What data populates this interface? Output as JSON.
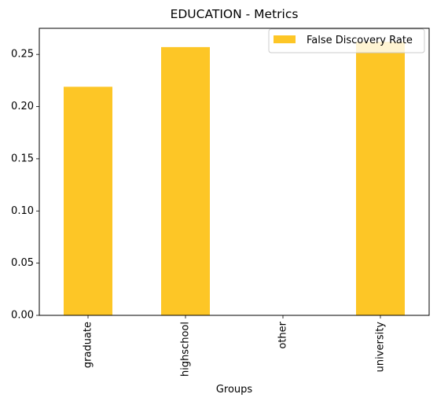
{
  "chart_data": {
    "type": "bar",
    "title": "EDUCATION - Metrics",
    "xlabel": "Groups",
    "ylabel": "",
    "categories": [
      "graduate",
      "highschool",
      "other",
      "university"
    ],
    "series": [
      {
        "name": "False Discovery Rate",
        "values": [
          0.219,
          0.257,
          0.0,
          0.262
        ],
        "color": "#fdc626"
      }
    ],
    "ylim": [
      0,
      0.275
    ],
    "yticks": [
      "0.00",
      "0.05",
      "0.10",
      "0.15",
      "0.20",
      "0.25"
    ],
    "legend_position": "top-right",
    "grid": false
  }
}
